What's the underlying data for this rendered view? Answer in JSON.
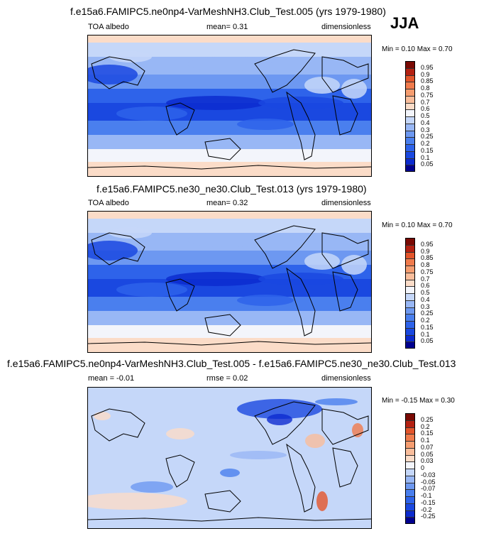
{
  "season": "JJA",
  "panels": [
    {
      "title": "f.e15a6.FAMIPC5.ne0np4-VarMeshNH3.Club_Test.005 (yrs 1979-1980)",
      "left_label": "TOA albedo",
      "center_label": "mean=  0.31",
      "right_label": "dimensionless",
      "range_label": "Min =  0.10 Max =  0.70"
    },
    {
      "title": "f.e15a6.FAMIPC5.ne30_ne30.Club_Test.013 (yrs 1979-1980)",
      "left_label": "TOA albedo",
      "center_label": "mean=  0.32",
      "right_label": "dimensionless",
      "range_label": "Min =  0.10 Max =  0.70"
    },
    {
      "title": "f.e15a6.FAMIPC5.ne0np4-VarMeshNH3.Club_Test.005 - f.e15a6.FAMIPC5.ne30_ne30.Club_Test.013",
      "left_label": "mean =  -0.01",
      "center_label": "rmse =  0.02",
      "right_label": "dimensionless",
      "range_label": "Min =  -0.15 Max =   0.30"
    }
  ],
  "chart_data": [
    {
      "type": "heatmap",
      "title": "f.e15a6.FAMIPC5.ne0np4-VarMeshNH3.Club_Test.005 (yrs 1979-1980)",
      "variable": "TOA albedo",
      "units": "dimensionless",
      "mean": 0.31,
      "min": 0.1,
      "max": 0.7,
      "colorbar_levels": [
        "0.05",
        "0.1",
        "0.15",
        "0.2",
        "0.25",
        "0.3",
        "0.4",
        "0.5",
        "0.6",
        "0.7",
        "0.75",
        "0.8",
        "0.85",
        "0.9",
        "0.95"
      ],
      "colorbar_colors": [
        "#00008f",
        "#0c2bcf",
        "#1a48e0",
        "#2e63ea",
        "#4a7fee",
        "#6d98f1",
        "#98b7f5",
        "#c5d7f9",
        "#f3f5fb",
        "#fbdcc8",
        "#f9bd9b",
        "#f59d70",
        "#f07b4c",
        "#e3552b",
        "#b42112",
        "#7a0a04"
      ]
    },
    {
      "type": "heatmap",
      "title": "f.e15a6.FAMIPC5.ne30_ne30.Club_Test.013 (yrs 1979-1980)",
      "variable": "TOA albedo",
      "units": "dimensionless",
      "mean": 0.32,
      "min": 0.1,
      "max": 0.7,
      "colorbar_levels": [
        "0.05",
        "0.1",
        "0.15",
        "0.2",
        "0.25",
        "0.3",
        "0.4",
        "0.5",
        "0.6",
        "0.7",
        "0.75",
        "0.8",
        "0.85",
        "0.9",
        "0.95"
      ],
      "colorbar_colors": [
        "#00008f",
        "#0c2bcf",
        "#1a48e0",
        "#2e63ea",
        "#4a7fee",
        "#6d98f1",
        "#98b7f5",
        "#c5d7f9",
        "#f3f5fb",
        "#fbdcc8",
        "#f9bd9b",
        "#f59d70",
        "#f07b4c",
        "#e3552b",
        "#b42112",
        "#7a0a04"
      ]
    },
    {
      "type": "heatmap",
      "title": "f.e15a6.FAMIPC5.ne0np4-VarMeshNH3.Club_Test.005 - f.e15a6.FAMIPC5.ne30_ne30.Club_Test.013",
      "units": "dimensionless",
      "mean": -0.01,
      "rmse": 0.02,
      "min": -0.15,
      "max": 0.3,
      "colorbar_levels": [
        "-0.25",
        "-0.2",
        "-0.15",
        "-0.1",
        "-0.07",
        "-0.05",
        "-0.03",
        "0",
        "0.03",
        "0.05",
        "0.07",
        "0.1",
        "0.15",
        "0.2",
        "0.25"
      ],
      "colorbar_colors": [
        "#00008f",
        "#0c2bcf",
        "#1a48e0",
        "#2e63ea",
        "#4a7fee",
        "#6d98f1",
        "#98b7f5",
        "#c5d7f9",
        "#f3f5fb",
        "#fbdcc8",
        "#f9bd9b",
        "#f59d70",
        "#f07b4c",
        "#e3552b",
        "#b42112",
        "#7a0a04"
      ]
    }
  ]
}
